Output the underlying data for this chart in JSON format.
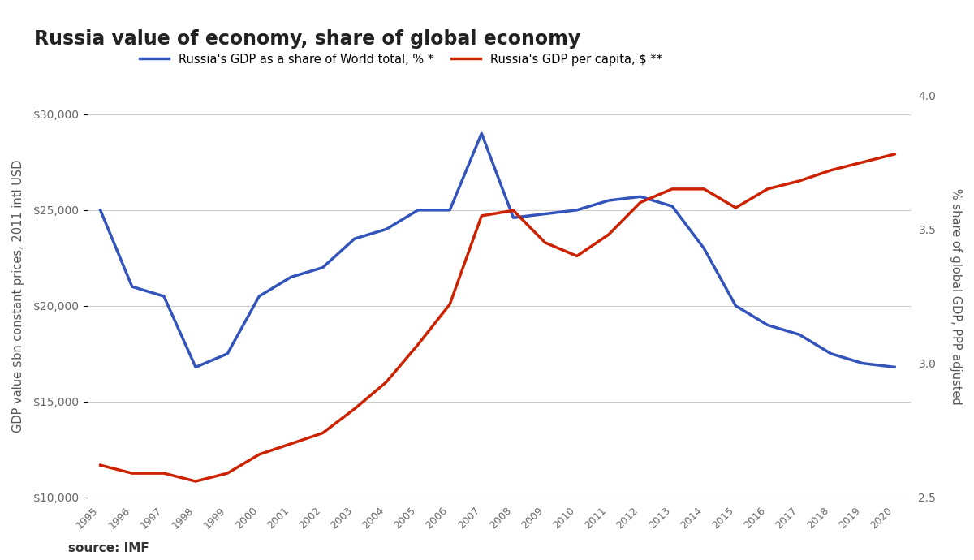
{
  "title": "Russia value of economy, share of global economy",
  "years": [
    1995,
    1996,
    1997,
    1998,
    1999,
    2000,
    2001,
    2002,
    2003,
    2004,
    2005,
    2006,
    2007,
    2008,
    2009,
    2010,
    2011,
    2012,
    2013,
    2014,
    2015,
    2016,
    2017,
    2018,
    2019,
    2020
  ],
  "gdp_per_capita": [
    25000,
    21000,
    20500,
    16800,
    17500,
    20500,
    21500,
    22000,
    23500,
    24000,
    25000,
    25000,
    29000,
    24600,
    24800,
    25000,
    25500,
    25700,
    25200,
    23000,
    20000,
    19000,
    18500,
    17500,
    17000,
    16800
  ],
  "gdp_share_pct": [
    2.62,
    2.59,
    2.59,
    2.56,
    2.59,
    2.66,
    2.7,
    2.74,
    2.83,
    2.93,
    3.07,
    3.22,
    3.55,
    3.57,
    3.45,
    3.4,
    3.48,
    3.6,
    3.65,
    3.65,
    3.58,
    3.65,
    3.68,
    3.72,
    3.75,
    3.78
  ],
  "left_axis_label": "GDP value $bn constant prices, 2011 intl USD",
  "right_axis_label": "% share of global GDP, PPP adjusted",
  "legend_blue": "Russia's GDP as a share of World total, % *",
  "legend_red": "Russia's GDP per capita, $ **",
  "source_text": "source: IMF",
  "blue_color": "#3355BB",
  "red_color": "#CC2200",
  "left_ylim": [
    10000,
    31000
  ],
  "right_ylim": [
    2.5,
    4.0
  ],
  "left_yticks": [
    10000,
    15000,
    20000,
    25000,
    30000
  ],
  "right_yticks": [
    2.5,
    3.0,
    3.5,
    4.0
  ],
  "background_color": "#FFFFFF",
  "grid_color": "#CCCCCC"
}
